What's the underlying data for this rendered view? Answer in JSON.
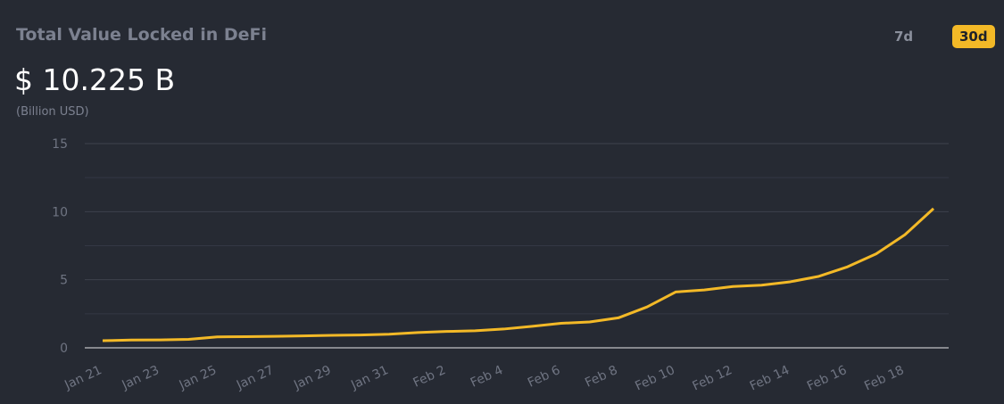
{
  "chart_data": {
    "type": "line",
    "title": "Total Value Locked in DeFi",
    "headline": "$ 10.225 B",
    "subtitle": "(Billion USD)",
    "ranges": [
      "7d",
      "30d"
    ],
    "active_range": 1,
    "categories": [
      "Jan 21",
      null,
      "Jan 23",
      null,
      "Jan 25",
      null,
      "Jan 27",
      null,
      "Jan 29",
      null,
      "Jan 31",
      null,
      "Feb 2",
      null,
      "Feb 4",
      null,
      "Feb 6",
      null,
      "Feb 8",
      null,
      "Feb 10",
      null,
      "Feb 12",
      null,
      "Feb 14",
      null,
      "Feb 16",
      null,
      "Feb 18",
      null
    ],
    "series": [
      {
        "name": "Total Value Locked",
        "color": "#f3b927",
        "values": [
          0.52,
          0.57,
          0.58,
          0.62,
          0.8,
          0.82,
          0.84,
          0.88,
          0.92,
          0.94,
          1.0,
          1.12,
          1.2,
          1.25,
          1.38,
          1.58,
          1.8,
          1.9,
          2.2,
          3.0,
          4.1,
          4.25,
          4.5,
          4.6,
          4.85,
          5.25,
          5.95,
          6.9,
          8.3,
          10.225
        ]
      }
    ],
    "ylim": [
      0,
      15
    ],
    "yticks": [
      0,
      5,
      10,
      15
    ],
    "yminorticks": [
      2.5,
      7.5,
      12.5
    ],
    "grid": true
  }
}
